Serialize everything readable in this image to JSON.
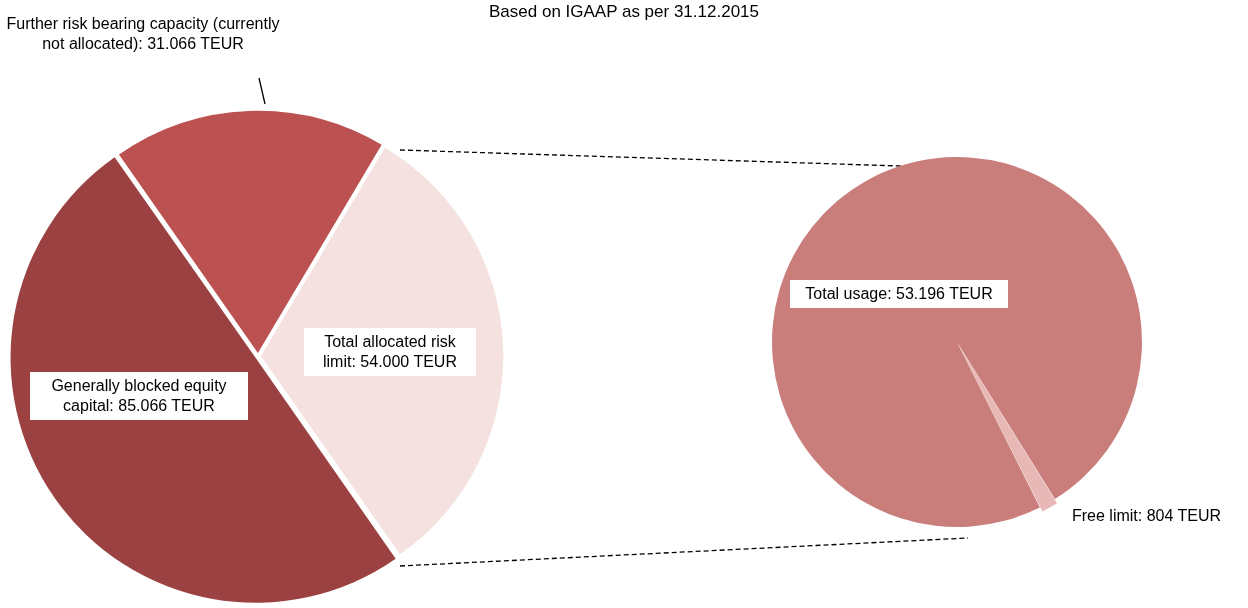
{
  "chart_data": [
    {
      "type": "pie",
      "title": "Based on IGAAP as per 31.12.2015",
      "categories": [
        "Further risk bearing capacity (currently not allocated)",
        "Total allocated risk limit",
        "Generally blocked equity capital"
      ],
      "values": [
        31066,
        54000,
        85066
      ],
      "colors": [
        "#bb5150",
        "#f5e1df",
        "#9b4141"
      ],
      "value_labels": [
        "31.066 TEUR",
        "54.000 TEUR",
        "85.066 TEUR"
      ]
    },
    {
      "type": "pie",
      "categories": [
        "Total usage",
        "Free limit"
      ],
      "values": [
        53196,
        804
      ],
      "colors": [
        "#c97e7c",
        "#e8b8b6"
      ],
      "value_labels": [
        "53.196 TEUR",
        "804 TEUR"
      ]
    }
  ]
}
